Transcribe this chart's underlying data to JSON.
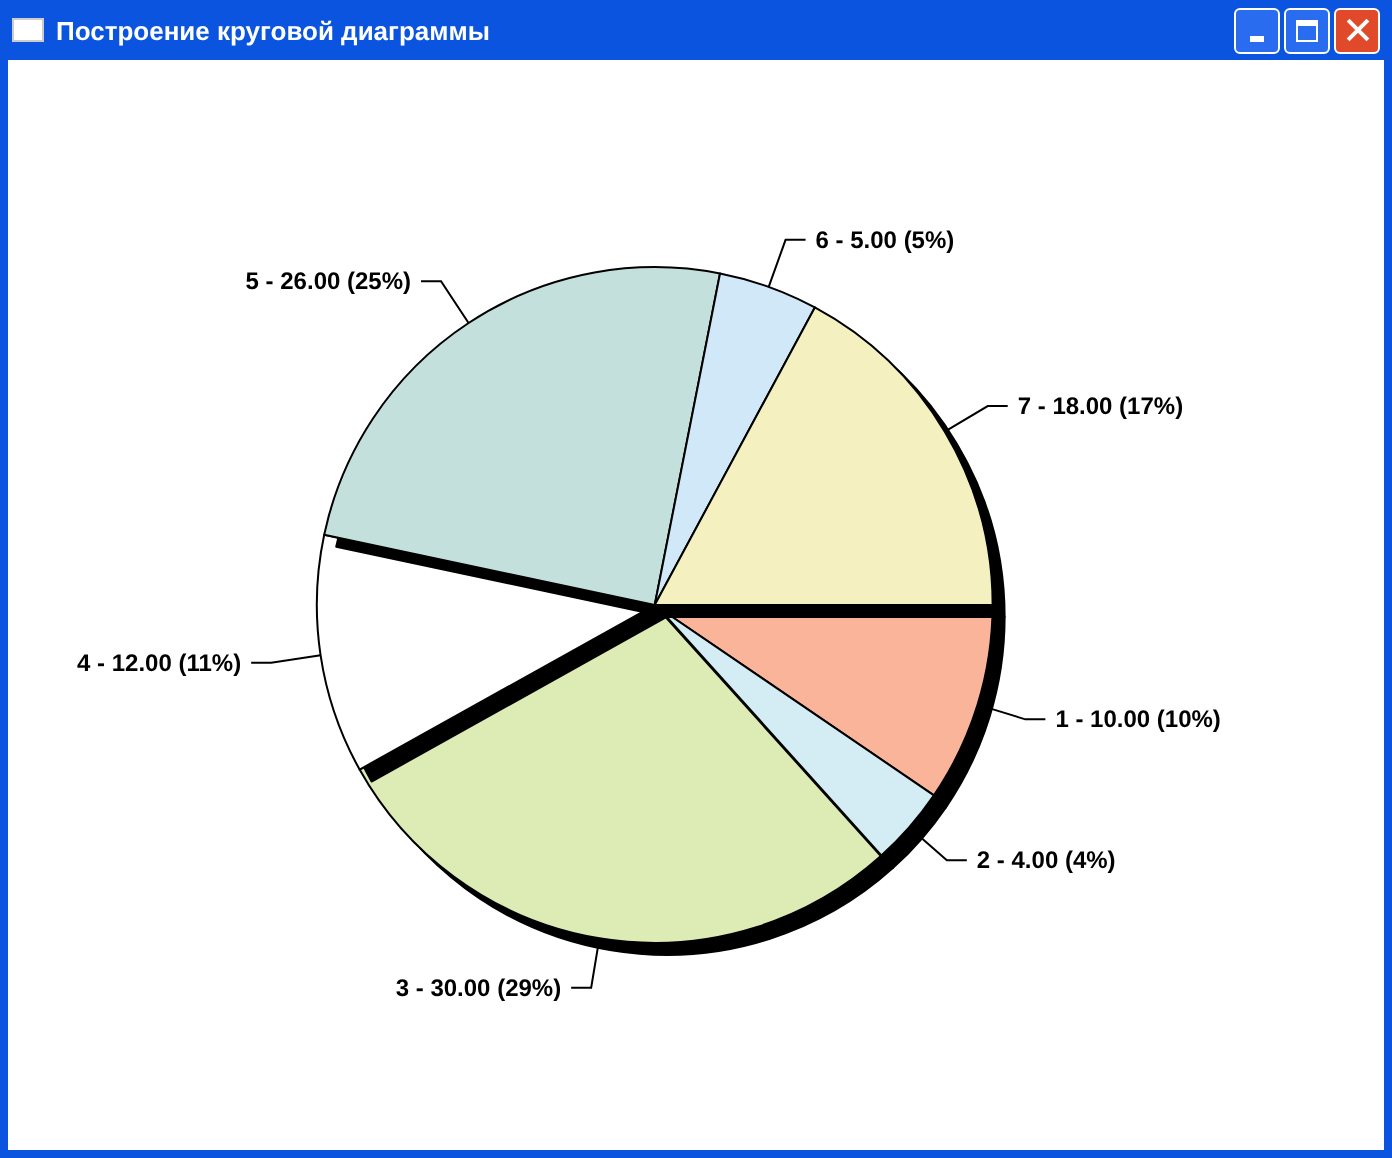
{
  "chart_data": {
    "type": "pie",
    "title": "Построение круговой диаграммы",
    "categories": [
      "1 - 10.00 (10%)",
      "2 - 4.00 (4%)",
      "3 - 30.00 (29%)",
      "4 - 12.00 (11%)",
      "5 - 26.00 (25%)",
      "6 - 5.00 (5%)",
      "7 - 18.00 (17%)"
    ],
    "values": [
      10,
      4,
      30,
      12,
      26,
      5,
      18
    ],
    "colors": [
      "#f9b49a",
      "#d4ecf4",
      "#dcecb4",
      "#ffffff",
      "#c4e0dc",
      "#d0e8f8",
      "#f4f0c0"
    ]
  }
}
